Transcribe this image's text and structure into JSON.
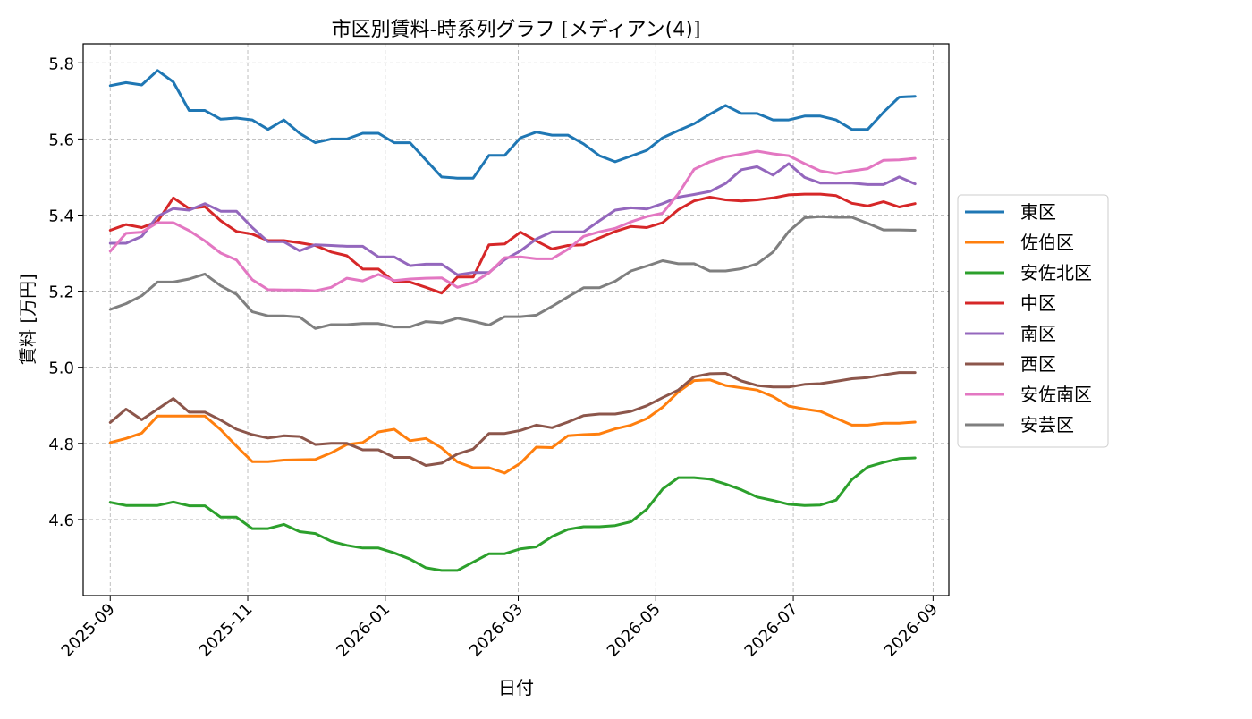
{
  "chart_data": {
    "type": "line",
    "title": "市区別賃料-時系列グラフ [メディアン(4)]",
    "xlabel": "日付",
    "ylabel": "賃料 [万円]",
    "x_start": "2025-09-01",
    "x_end": "2026-08-27",
    "x_step_days": 7,
    "xlim": [
      "2025-08-20",
      "2026-09-08"
    ],
    "ylim": [
      4.4,
      5.85
    ],
    "xticks": [
      {
        "date": "2025-09-01",
        "label": "2025-09"
      },
      {
        "date": "2025-11-01",
        "label": "2025-11"
      },
      {
        "date": "2026-01-01",
        "label": "2026-01"
      },
      {
        "date": "2026-03-01",
        "label": "2026-03"
      },
      {
        "date": "2026-05-01",
        "label": "2026-05"
      },
      {
        "date": "2026-07-01",
        "label": "2026-07"
      },
      {
        "date": "2026-09-01",
        "label": "2026-09"
      }
    ],
    "yticks": [
      {
        "value": 4.6,
        "label": "4.6"
      },
      {
        "value": 4.8,
        "label": "4.8"
      },
      {
        "value": 5.0,
        "label": "5.0"
      },
      {
        "value": 5.2,
        "label": "5.2"
      },
      {
        "value": 5.4,
        "label": "5.4"
      },
      {
        "value": 5.6,
        "label": "5.6"
      },
      {
        "value": 5.8,
        "label": "5.8"
      }
    ],
    "grid": true,
    "legend_position": "outside-right",
    "series": [
      {
        "name": "東区",
        "color": "#1f77b4",
        "values": [
          5.74,
          5.748,
          5.742,
          5.78,
          5.75,
          5.675,
          5.675,
          5.652,
          5.655,
          5.65,
          5.625,
          5.65,
          5.615,
          5.59,
          5.6,
          5.6,
          5.615,
          5.615,
          5.59,
          5.59,
          5.545,
          5.5,
          5.497,
          5.497,
          5.557,
          5.557,
          5.603,
          5.618,
          5.61,
          5.61,
          5.587,
          5.556,
          5.54,
          5.555,
          5.57,
          5.603,
          5.622,
          5.64,
          5.665,
          5.688,
          5.667,
          5.667,
          5.65,
          5.65,
          5.66,
          5.66,
          5.65,
          5.625,
          5.625,
          5.67,
          5.71,
          5.712
        ]
      },
      {
        "name": "佐伯区",
        "color": "#ff7f0e",
        "values": [
          4.802,
          4.813,
          4.827,
          4.872,
          4.872,
          4.872,
          4.872,
          4.836,
          4.793,
          4.752,
          4.752,
          4.756,
          4.757,
          4.758,
          4.775,
          4.797,
          4.802,
          4.83,
          4.837,
          4.807,
          4.813,
          4.788,
          4.751,
          4.736,
          4.736,
          4.722,
          4.748,
          4.79,
          4.789,
          4.82,
          4.823,
          4.825,
          4.838,
          4.848,
          4.865,
          4.895,
          4.935,
          4.965,
          4.967,
          4.952,
          4.946,
          4.94,
          4.923,
          4.898,
          4.89,
          4.884,
          4.866,
          4.848,
          4.848,
          4.853,
          4.853,
          4.856
        ]
      },
      {
        "name": "安佐北区",
        "color": "#2ca02c",
        "values": [
          4.645,
          4.637,
          4.637,
          4.637,
          4.646,
          4.636,
          4.636,
          4.606,
          4.606,
          4.576,
          4.576,
          4.587,
          4.568,
          4.563,
          4.543,
          4.532,
          4.525,
          4.525,
          4.512,
          4.496,
          4.473,
          4.466,
          4.466,
          4.488,
          4.51,
          4.51,
          4.523,
          4.528,
          4.555,
          4.574,
          4.581,
          4.581,
          4.584,
          4.594,
          4.627,
          4.68,
          4.71,
          4.71,
          4.706,
          4.693,
          4.678,
          4.659,
          4.65,
          4.64,
          4.637,
          4.638,
          4.651,
          4.705,
          4.738,
          4.75,
          4.76,
          4.762
        ]
      },
      {
        "name": "中区",
        "color": "#d62728",
        "values": [
          5.36,
          5.375,
          5.367,
          5.383,
          5.445,
          5.417,
          5.422,
          5.385,
          5.357,
          5.35,
          5.333,
          5.333,
          5.327,
          5.32,
          5.303,
          5.293,
          5.258,
          5.258,
          5.225,
          5.224,
          5.21,
          5.195,
          5.237,
          5.237,
          5.322,
          5.324,
          5.355,
          5.332,
          5.311,
          5.32,
          5.322,
          5.34,
          5.357,
          5.37,
          5.367,
          5.38,
          5.414,
          5.437,
          5.447,
          5.44,
          5.437,
          5.44,
          5.445,
          5.453,
          5.455,
          5.455,
          5.451,
          5.431,
          5.424,
          5.435,
          5.421,
          5.43
        ]
      },
      {
        "name": "南区",
        "color": "#9467bd",
        "values": [
          5.326,
          5.326,
          5.344,
          5.397,
          5.417,
          5.413,
          5.43,
          5.41,
          5.41,
          5.367,
          5.33,
          5.33,
          5.306,
          5.322,
          5.32,
          5.318,
          5.318,
          5.29,
          5.29,
          5.267,
          5.271,
          5.271,
          5.243,
          5.249,
          5.249,
          5.283,
          5.306,
          5.337,
          5.356,
          5.356,
          5.356,
          5.385,
          5.413,
          5.419,
          5.416,
          5.43,
          5.447,
          5.454,
          5.462,
          5.483,
          5.519,
          5.527,
          5.505,
          5.535,
          5.499,
          5.484,
          5.484,
          5.484,
          5.48,
          5.48,
          5.5,
          5.482
        ]
      },
      {
        "name": "西区",
        "color": "#8c564b",
        "values": [
          4.855,
          4.89,
          4.862,
          4.89,
          4.918,
          4.882,
          4.882,
          4.861,
          4.837,
          4.823,
          4.814,
          4.82,
          4.818,
          4.797,
          4.8,
          4.8,
          4.783,
          4.783,
          4.763,
          4.763,
          4.742,
          4.748,
          4.772,
          4.785,
          4.826,
          4.826,
          4.834,
          4.848,
          4.841,
          4.856,
          4.873,
          4.877,
          4.877,
          4.884,
          4.899,
          4.92,
          4.94,
          4.975,
          4.983,
          4.984,
          4.964,
          4.952,
          4.948,
          4.948,
          4.955,
          4.957,
          4.963,
          4.97,
          4.973,
          4.98,
          4.986,
          4.986
        ]
      },
      {
        "name": "安佐南区",
        "color": "#e377c2",
        "values": [
          5.305,
          5.352,
          5.355,
          5.38,
          5.38,
          5.359,
          5.332,
          5.3,
          5.282,
          5.23,
          5.204,
          5.203,
          5.203,
          5.201,
          5.21,
          5.234,
          5.227,
          5.244,
          5.228,
          5.232,
          5.234,
          5.235,
          5.21,
          5.222,
          5.248,
          5.288,
          5.29,
          5.285,
          5.285,
          5.31,
          5.344,
          5.356,
          5.365,
          5.382,
          5.396,
          5.405,
          5.456,
          5.52,
          5.54,
          5.553,
          5.56,
          5.568,
          5.561,
          5.556,
          5.535,
          5.516,
          5.509,
          5.516,
          5.522,
          5.544,
          5.545,
          5.549
        ]
      },
      {
        "name": "安芸区",
        "color": "#7f7f7f",
        "values": [
          5.152,
          5.167,
          5.188,
          5.224,
          5.224,
          5.232,
          5.245,
          5.214,
          5.192,
          5.146,
          5.135,
          5.135,
          5.132,
          5.102,
          5.112,
          5.112,
          5.115,
          5.115,
          5.106,
          5.106,
          5.12,
          5.117,
          5.129,
          5.121,
          5.111,
          5.133,
          5.133,
          5.137,
          5.16,
          5.185,
          5.209,
          5.209,
          5.226,
          5.253,
          5.266,
          5.28,
          5.272,
          5.272,
          5.253,
          5.253,
          5.259,
          5.272,
          5.303,
          5.357,
          5.393,
          5.396,
          5.394,
          5.394,
          5.378,
          5.361,
          5.361,
          5.36
        ]
      }
    ]
  }
}
